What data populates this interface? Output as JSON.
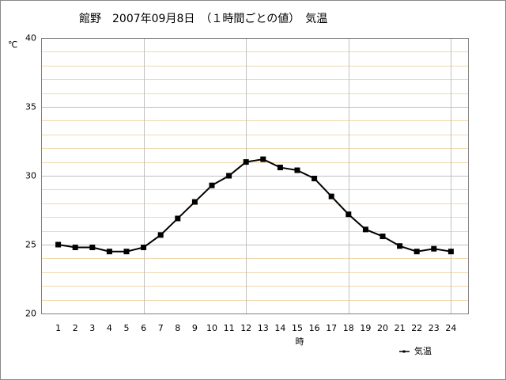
{
  "chart_data": {
    "type": "line",
    "title": "館野　2007年09月8日　（１時間ごとの値）　気温",
    "y_unit": "℃",
    "x_label": "時",
    "x": [
      1,
      2,
      3,
      4,
      5,
      6,
      7,
      8,
      9,
      10,
      11,
      12,
      13,
      14,
      15,
      16,
      17,
      18,
      19,
      20,
      21,
      22,
      23,
      24
    ],
    "xlim": [
      0,
      25
    ],
    "xticks": [
      1,
      2,
      3,
      4,
      5,
      6,
      7,
      8,
      9,
      10,
      11,
      12,
      13,
      14,
      15,
      16,
      17,
      18,
      19,
      20,
      21,
      22,
      23,
      24
    ],
    "xgrid": [
      6,
      12,
      18,
      24
    ],
    "ylim": [
      20,
      40
    ],
    "yticks": [
      20,
      25,
      30,
      35,
      40
    ],
    "minor_yticks": [
      21,
      22,
      23,
      24,
      26,
      27,
      28,
      29,
      31,
      32,
      33,
      34,
      36,
      37,
      38,
      39
    ],
    "series": [
      {
        "name": "気温",
        "color": "#000000",
        "values": [
          25.0,
          24.8,
          24.8,
          24.5,
          24.5,
          24.8,
          25.7,
          26.9,
          28.1,
          29.3,
          30.0,
          31.0,
          31.2,
          30.6,
          30.4,
          29.8,
          28.5,
          27.2,
          26.1,
          25.6,
          24.9,
          24.5,
          24.7,
          24.5
        ]
      }
    ]
  }
}
